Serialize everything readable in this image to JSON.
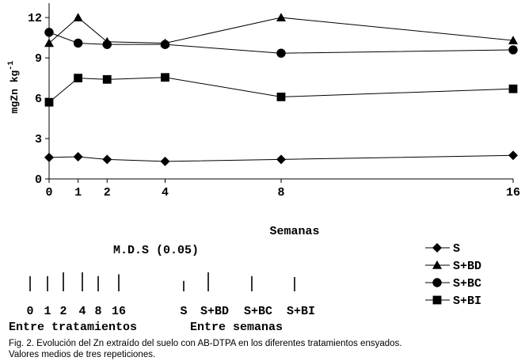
{
  "chart_data": {
    "type": "line",
    "xlabel": "Semanas",
    "ylabel": "mgZn kg-1",
    "ylabel_base": "mgZn kg",
    "ylabel_exp": "-1",
    "x": [
      0,
      1,
      2,
      4,
      8,
      16
    ],
    "x_tick_labels": [
      "0",
      "1",
      "2",
      "4",
      "8",
      "16"
    ],
    "ylim": [
      0,
      12.6
    ],
    "y_ticks": [
      0,
      3,
      6,
      9,
      12
    ],
    "y_tick_labels": [
      "0",
      "3",
      "6",
      "9",
      "12"
    ],
    "legend_position": "bottom-right",
    "series": [
      {
        "name": "S",
        "marker": "diamond",
        "values": [
          1.6,
          1.65,
          1.45,
          1.3,
          1.45,
          1.75
        ]
      },
      {
        "name": "S+BD",
        "marker": "triangle",
        "values": [
          10.1,
          12.0,
          10.2,
          10.1,
          12.0,
          10.3
        ]
      },
      {
        "name": "S+BC",
        "marker": "circle",
        "values": [
          10.9,
          10.1,
          10.0,
          10.0,
          9.35,
          9.6
        ]
      },
      {
        "name": "S+BI",
        "marker": "square",
        "values": [
          5.7,
          7.5,
          7.4,
          7.55,
          6.1,
          6.7
        ]
      }
    ]
  },
  "mds": {
    "title": "M.D.S (0.05)",
    "tratamientos": {
      "caption": "Entre tratamientos",
      "labels": [
        "0",
        "1",
        "2",
        "4",
        "8",
        "16"
      ],
      "values": [
        0.8,
        0.8,
        1.0,
        1.0,
        0.8,
        0.9
      ]
    },
    "semanas": {
      "caption": "Entre semanas",
      "labels": [
        "S",
        "S+BD",
        "S+BC",
        "S+BI"
      ],
      "values": [
        0.55,
        1.0,
        0.8,
        0.75
      ]
    }
  },
  "caption": {
    "line1": "Fig. 2. Evolución del Zn extraído del suelo con AB-DTPA en los diferentes tratamientos ensyados.",
    "line2": "Valores medios de tres repeticiones."
  }
}
